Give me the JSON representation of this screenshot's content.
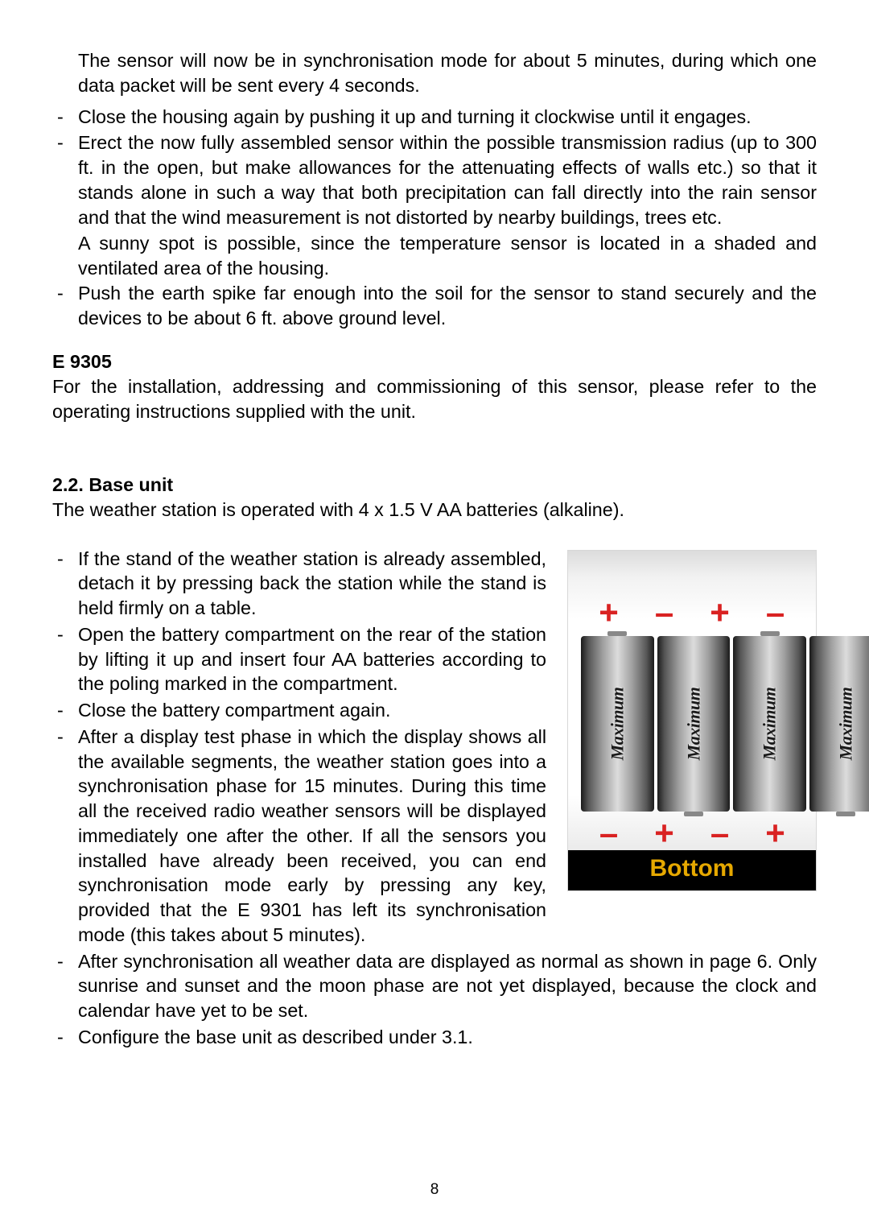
{
  "page_number": "8",
  "typography": {
    "body_fontsize": 23.3,
    "heading_fontsize": 23.3,
    "heading_weight": "bold",
    "body_color": "#000000",
    "accent_label_color": "#e6a800",
    "polarity_color": "#d92222",
    "page_bg": "#ffffff"
  },
  "top_block": {
    "continuation_para": "The sensor will now be in synchronisation mode for about 5 minutes, during which one data packet will be sent every 4 seconds.",
    "items": [
      {
        "text": "Close the housing again by pushing it up and turning it clockwise until it engages."
      },
      {
        "text": "Erect the now fully assembled sensor within the possible transmission radius (up to 300 ft. in the open, but make allowances for the attenuating effects of walls etc.) so that it stands alone in such a way that both precipitation can fall directly into the rain sensor and that the wind measurement is not distorted by nearby buildings, trees etc.",
        "trailing": "A sunny spot is possible, since the temperature sensor is located in a shaded and ventilated area of the housing."
      },
      {
        "text": "Push the earth spike far enough into the soil for the sensor to stand securely and the devices to be about 6 ft. above ground level."
      }
    ]
  },
  "e9305": {
    "heading": "E 9305",
    "para": "For the installation, addressing and commissioning of this sensor, please refer to the operating instructions supplied with the unit."
  },
  "base_unit": {
    "heading": "2.2.  Base unit",
    "intro": "The weather station is operated with 4 x 1.5 V AA batteries (alkaline).",
    "left_items": [
      "If the stand of the weather station is already assembled, detach it by pressing back the station while the stand is held firmly on a table.",
      "Open the battery compartment on the rear of the station by lifting it up and insert four AA batteries according to the poling marked in the compartment.",
      "Close the battery compartment again.",
      "After a display test phase in which the display shows all the available segments, the weather station goes into a synchronisation phase for 15 minutes. During this time all the received radio weather sensors will be displayed immediately one after the other. If all the sensors you installed have already been received, you can end synchronisation mode early by pressing any key, provided that the E 9301 has left its synchronisation mode (this takes about 5 minutes)."
    ],
    "full_items": [
      "After synchronisation all weather data are displayed as normal as shown in page 6. Only sunrise and sunset and the moon phase are not yet displayed, because the clock and calendar have yet to be set.",
      "Configure the base unit as described under 3.1."
    ]
  },
  "battery_figure": {
    "top_row": [
      "+",
      "–",
      "+",
      "–"
    ],
    "bottom_row": [
      "–",
      "+",
      "–",
      "+"
    ],
    "cells": [
      {
        "label": "Maximum",
        "orientation": "up"
      },
      {
        "label": "Maximum",
        "orientation": "down"
      },
      {
        "label": "Maximum",
        "orientation": "up"
      },
      {
        "label": "Maximum",
        "orientation": "down"
      }
    ],
    "bottom_label": "Bottom",
    "colors": {
      "label_bg": "#000000",
      "label_fg": "#e6a800",
      "battery_gradient": [
        "#1a1a1a",
        "#555555",
        "#a0a0a0",
        "#dcdcdc"
      ],
      "box_border": "#d8d8d8"
    }
  }
}
